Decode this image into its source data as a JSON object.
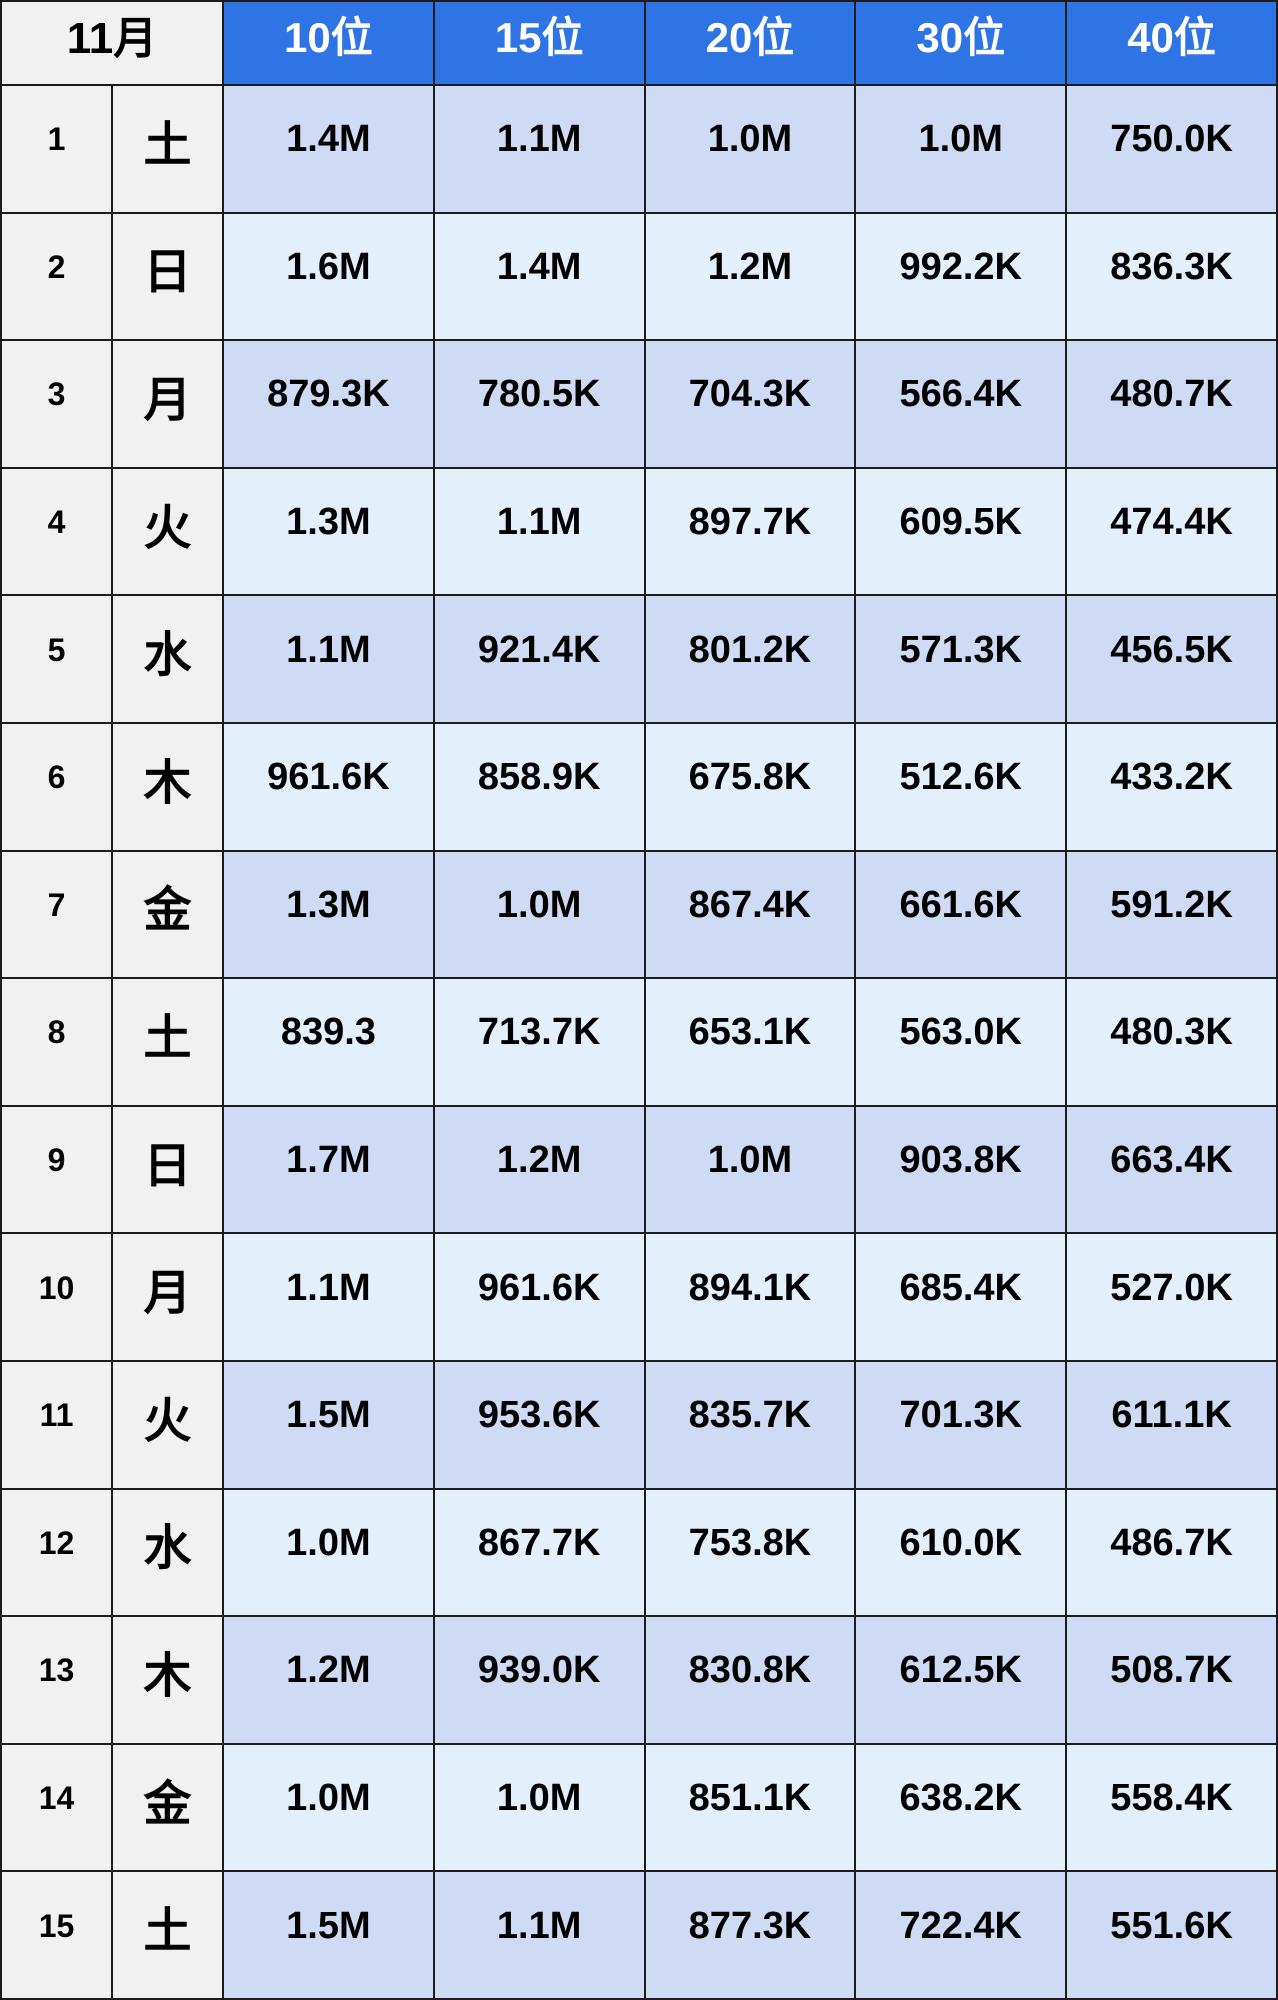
{
  "colors": {
    "header_bg": "#2e74e4",
    "header_text": "#ffffff",
    "label_bg": "#f1f1f2",
    "row_odd_bg": "#cfdaf4",
    "row_even_bg": "#e4effc",
    "border": "#1c1c1c",
    "text": "#000000"
  },
  "chart_data": {
    "type": "table",
    "title": "11月",
    "columns": [
      "10位",
      "15位",
      "20位",
      "30位",
      "40位"
    ],
    "rows": [
      {
        "date": "1",
        "day": "土",
        "values": [
          "1.4M",
          "1.1M",
          "1.0M",
          "1.0M",
          "750.0K"
        ]
      },
      {
        "date": "2",
        "day": "日",
        "values": [
          "1.6M",
          "1.4M",
          "1.2M",
          "992.2K",
          "836.3K"
        ]
      },
      {
        "date": "3",
        "day": "月",
        "values": [
          "879.3K",
          "780.5K",
          "704.3K",
          "566.4K",
          "480.7K"
        ]
      },
      {
        "date": "4",
        "day": "火",
        "values": [
          "1.3M",
          "1.1M",
          "897.7K",
          "609.5K",
          "474.4K"
        ]
      },
      {
        "date": "5",
        "day": "水",
        "values": [
          "1.1M",
          "921.4K",
          "801.2K",
          "571.3K",
          "456.5K"
        ]
      },
      {
        "date": "6",
        "day": "木",
        "values": [
          "961.6K",
          "858.9K",
          "675.8K",
          "512.6K",
          "433.2K"
        ]
      },
      {
        "date": "7",
        "day": "金",
        "values": [
          "1.3M",
          "1.0M",
          "867.4K",
          "661.6K",
          "591.2K"
        ]
      },
      {
        "date": "8",
        "day": "土",
        "values": [
          "839.3",
          "713.7K",
          "653.1K",
          "563.0K",
          "480.3K"
        ]
      },
      {
        "date": "9",
        "day": "日",
        "values": [
          "1.7M",
          "1.2M",
          "1.0M",
          "903.8K",
          "663.4K"
        ]
      },
      {
        "date": "10",
        "day": "月",
        "values": [
          "1.1M",
          "961.6K",
          "894.1K",
          "685.4K",
          "527.0K"
        ]
      },
      {
        "date": "11",
        "day": "火",
        "values": [
          "1.5M",
          "953.6K",
          "835.7K",
          "701.3K",
          "611.1K"
        ]
      },
      {
        "date": "12",
        "day": "水",
        "values": [
          "1.0M",
          "867.7K",
          "753.8K",
          "610.0K",
          "486.7K"
        ]
      },
      {
        "date": "13",
        "day": "木",
        "values": [
          "1.2M",
          "939.0K",
          "830.8K",
          "612.5K",
          "508.7K"
        ]
      },
      {
        "date": "14",
        "day": "金",
        "values": [
          "1.0M",
          "1.0M",
          "851.1K",
          "638.2K",
          "558.4K"
        ]
      },
      {
        "date": "15",
        "day": "土",
        "values": [
          "1.5M",
          "1.1M",
          "877.3K",
          "722.4K",
          "551.6K"
        ]
      }
    ]
  }
}
